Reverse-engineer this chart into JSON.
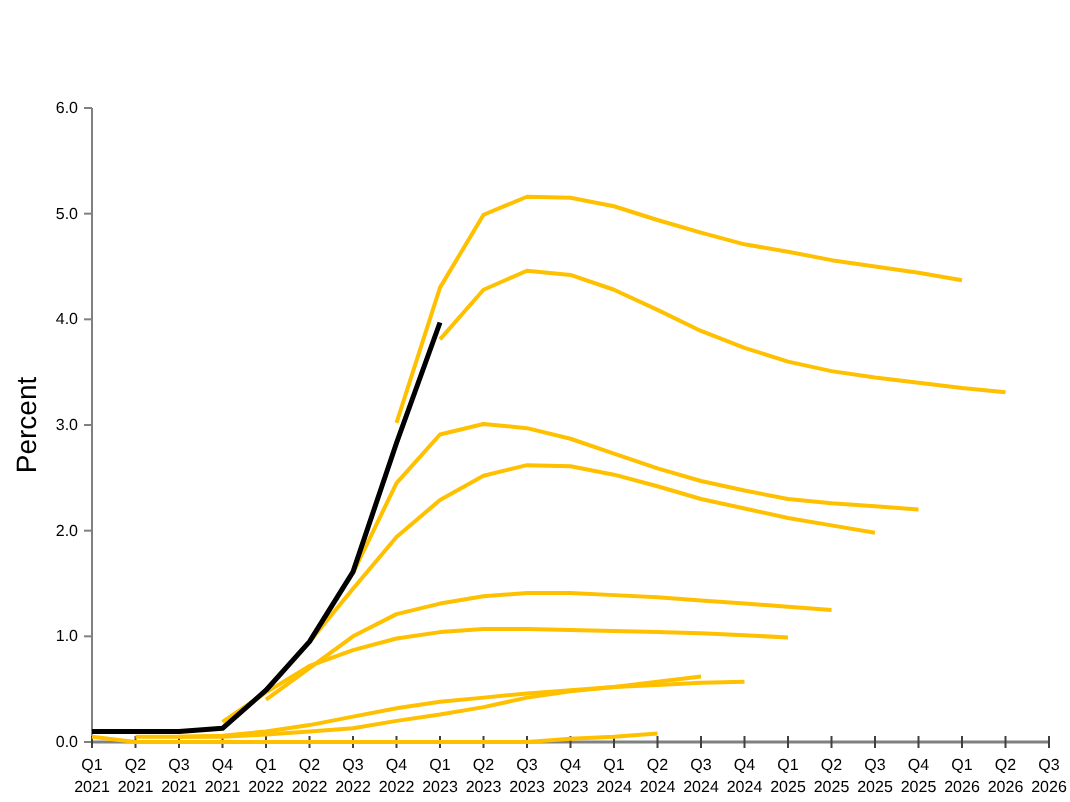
{
  "chart_data": {
    "type": "line",
    "ylabel": "Percent",
    "categories": [
      "Q1 2021",
      "Q2 2021",
      "Q3 2021",
      "Q4 2021",
      "Q1 2022",
      "Q2 2022",
      "Q3 2022",
      "Q4 2022",
      "Q1 2023",
      "Q2 2023",
      "Q3 2023",
      "Q4 2023",
      "Q1 2024",
      "Q2 2024",
      "Q3 2024",
      "Q4 2024",
      "Q1 2025",
      "Q2 2025",
      "Q3 2025",
      "Q4 2025",
      "Q1 2026",
      "Q2 2026",
      "Q3 2026"
    ],
    "ylim": [
      0,
      6
    ],
    "yticks": [
      {
        "value": 0,
        "label": "0.0"
      },
      {
        "value": 1,
        "label": "1.0"
      },
      {
        "value": 2,
        "label": "2.0"
      },
      {
        "value": 3,
        "label": "3.0"
      },
      {
        "value": 4,
        "label": "4.0"
      },
      {
        "value": 5,
        "label": "5.0"
      },
      {
        "value": 6,
        "label": "6.0"
      }
    ],
    "grid": false,
    "marker": "none",
    "line_style": "solid",
    "series": [
      {
        "color": "#ffc000",
        "values": [
          0.05,
          0,
          0,
          0,
          0,
          0,
          0,
          0,
          0,
          0,
          0,
          0.03,
          0.05,
          0.08,
          null,
          null,
          null,
          null,
          null,
          null,
          null,
          null,
          null
        ]
      },
      {
        "color": "#ffc000",
        "values": [
          null,
          0.05,
          0.05,
          0.05,
          0.07,
          0.1,
          0.13,
          0.2,
          0.26,
          0.33,
          0.42,
          0.48,
          0.52,
          0.57,
          0.62,
          null,
          null,
          null,
          null,
          null,
          null,
          null,
          null
        ]
      },
      {
        "color": "#ffc000",
        "values": [
          null,
          null,
          0.05,
          0.06,
          0.1,
          0.16,
          0.24,
          0.32,
          0.38,
          0.42,
          0.46,
          0.49,
          0.52,
          0.54,
          0.56,
          0.57,
          null,
          null,
          null,
          null,
          null,
          null,
          null
        ]
      },
      {
        "color": "#ffc000",
        "values": [
          null,
          null,
          null,
          0.19,
          0.47,
          0.72,
          0.87,
          0.98,
          1.04,
          1.07,
          1.07,
          1.06,
          1.05,
          1.04,
          1.03,
          1.01,
          0.99,
          null,
          null,
          null,
          null,
          null,
          null
        ]
      },
      {
        "color": "#ffc000",
        "values": [
          null,
          null,
          null,
          null,
          0.4,
          0.7,
          1.0,
          1.21,
          1.31,
          1.38,
          1.41,
          1.41,
          1.39,
          1.37,
          1.34,
          1.31,
          1.28,
          1.25,
          null,
          null,
          null,
          null,
          null
        ]
      },
      {
        "color": "#ffc000",
        "values": [
          null,
          null,
          null,
          null,
          null,
          0.95,
          1.45,
          1.94,
          2.29,
          2.52,
          2.62,
          2.61,
          2.53,
          2.42,
          2.3,
          2.21,
          2.12,
          2.05,
          1.98,
          null,
          null,
          null,
          null
        ]
      },
      {
        "color": "#ffc000",
        "values": [
          null,
          null,
          null,
          null,
          null,
          null,
          1.6,
          2.45,
          2.91,
          3.01,
          2.97,
          2.87,
          2.73,
          2.59,
          2.47,
          2.38,
          2.3,
          2.26,
          2.23,
          2.2,
          null,
          null,
          null
        ]
      },
      {
        "color": "#ffc000",
        "values": [
          null,
          null,
          null,
          null,
          null,
          null,
          null,
          3.02,
          4.3,
          4.99,
          5.16,
          5.15,
          5.07,
          4.94,
          4.82,
          4.71,
          4.64,
          4.56,
          4.5,
          4.44,
          4.37,
          null,
          null
        ]
      },
      {
        "color": "#ffc000",
        "values": [
          null,
          null,
          null,
          null,
          null,
          null,
          null,
          null,
          3.81,
          4.28,
          4.46,
          4.42,
          4.28,
          4.09,
          3.89,
          3.73,
          3.6,
          3.51,
          3.45,
          3.4,
          3.35,
          3.31,
          null
        ]
      },
      {
        "color": "#000000",
        "values": [
          0.1,
          0.1,
          0.1,
          0.13,
          0.49,
          0.95,
          1.61,
          2.83,
          3.97,
          null,
          null,
          null,
          null,
          null,
          null,
          null,
          null,
          null,
          null,
          null,
          null,
          null,
          null
        ]
      }
    ]
  }
}
